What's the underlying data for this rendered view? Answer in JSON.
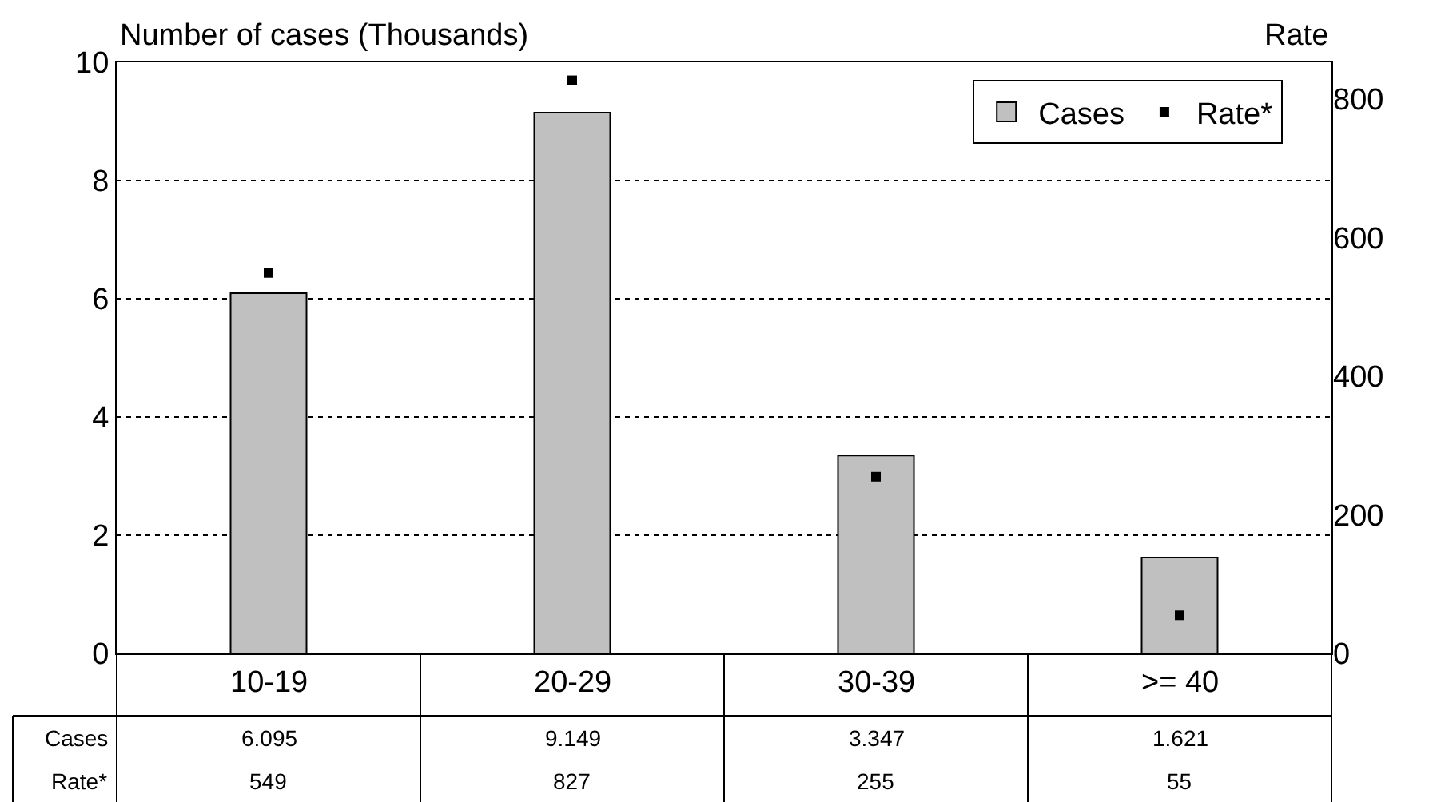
{
  "chart_data": {
    "type": "bar",
    "ylabel": "Number of cases (Thousands)",
    "y2label": "Rate",
    "categories": [
      "10-19",
      "20-29",
      "30-39",
      ">= 40"
    ],
    "series": [
      {
        "name": "Cases",
        "color": "#c0c0c0",
        "values": [
          6.095,
          9.149,
          3.347,
          1.621
        ]
      },
      {
        "name": "Rate*",
        "type": "scatter",
        "axis": "y2",
        "color": "#000000",
        "values": [
          549,
          827,
          255,
          55
        ]
      }
    ],
    "ylim": [
      0,
      10
    ],
    "yticks": [
      0,
      2,
      4,
      6,
      8,
      10
    ],
    "y2lim": [
      0,
      853
    ],
    "y2ticks": [
      0,
      200,
      400,
      600,
      800
    ],
    "grid": "y",
    "legend": "top right",
    "marker": "square",
    "data_labels": true
  }
}
